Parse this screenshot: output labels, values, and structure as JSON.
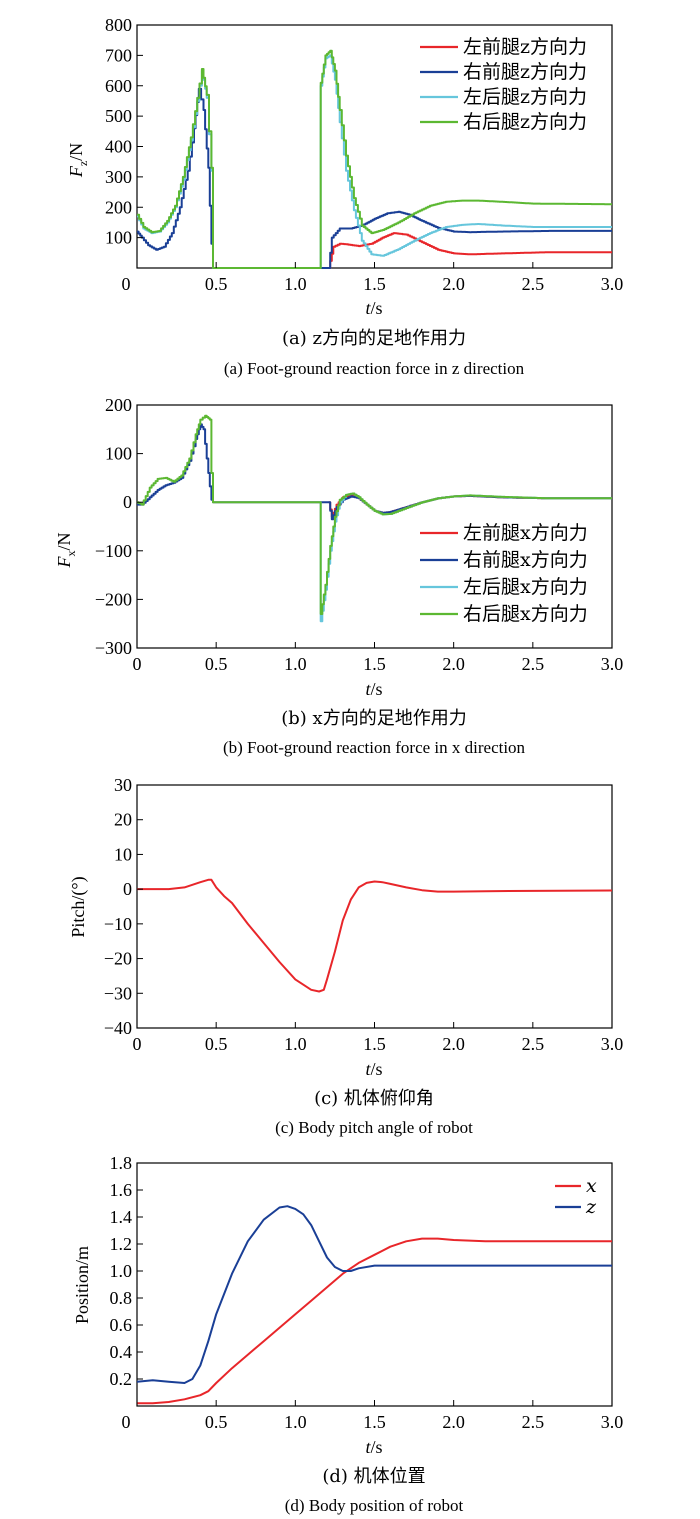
{
  "chart_data": [
    {
      "type": "line",
      "ylabel": "F_z/N",
      "xlabel": "t/s",
      "xlim": [
        0,
        3.0
      ],
      "ylim": [
        0,
        800
      ],
      "xticks": [
        "0",
        "0.5",
        "1.0",
        "1.5",
        "2.0",
        "2.5",
        "3.0"
      ],
      "yticks": [
        "100",
        "200",
        "300",
        "400",
        "500",
        "600",
        "700",
        "800"
      ],
      "legend_position": "top-right",
      "caption_cn": "(a) z方向的足地作用力",
      "caption_en": "(a) Foot-ground reaction force in z direction",
      "series": [
        {
          "name": "左前腿z方向力",
          "color": "#e8262a",
          "x": [
            1.21,
            1.24,
            1.28,
            1.32,
            1.36,
            1.4,
            1.48,
            1.55,
            1.62,
            1.7,
            1.8,
            1.9,
            2.0,
            2.1,
            2.3,
            2.6,
            3.0
          ],
          "y": [
            0,
            70,
            80,
            78,
            75,
            72,
            80,
            100,
            115,
            110,
            85,
            60,
            48,
            45,
            48,
            52,
            52
          ]
        },
        {
          "name": "右前腿z方向力",
          "color": "#1a3f96",
          "x": [
            0,
            0.03,
            0.07,
            0.12,
            0.17,
            0.22,
            0.27,
            0.32,
            0.36,
            0.39,
            0.42,
            0.45,
            0.47,
            0.48,
            1.21,
            1.23,
            1.28,
            1.35,
            1.42,
            1.5,
            1.58,
            1.65,
            1.72,
            1.8,
            1.9,
            2.0,
            2.1,
            2.3,
            2.6,
            3.0
          ],
          "y": [
            120,
            100,
            75,
            60,
            70,
            115,
            200,
            320,
            460,
            590,
            520,
            330,
            80,
            0,
            0,
            100,
            130,
            130,
            140,
            162,
            180,
            185,
            175,
            155,
            132,
            120,
            118,
            120,
            122,
            122
          ]
        },
        {
          "name": "左后腿z方向力",
          "color": "#66c6dc",
          "x": [
            0,
            0.04,
            0.09,
            0.14,
            0.19,
            0.24,
            0.29,
            0.34,
            0.38,
            0.41,
            0.44,
            0.47,
            0.48,
            1.15,
            1.16,
            1.19,
            1.22,
            1.25,
            1.28,
            1.32,
            1.37,
            1.42,
            1.48,
            1.55,
            1.65,
            1.75,
            1.85,
            1.95,
            2.05,
            2.15,
            2.3,
            2.5,
            3.0
          ],
          "y": [
            170,
            130,
            115,
            120,
            150,
            200,
            290,
            420,
            550,
            650,
            560,
            320,
            0,
            0,
            600,
            690,
            700,
            620,
            480,
            320,
            190,
            90,
            45,
            40,
            62,
            90,
            115,
            135,
            142,
            145,
            140,
            135,
            135
          ]
        },
        {
          "name": "右后腿z方向力",
          "color": "#5cb832",
          "x": [
            0,
            0.04,
            0.09,
            0.14,
            0.19,
            0.24,
            0.29,
            0.34,
            0.38,
            0.41,
            0.44,
            0.47,
            0.48,
            1.15,
            1.16,
            1.19,
            1.22,
            1.25,
            1.28,
            1.32,
            1.37,
            1.42,
            1.48,
            1.55,
            1.65,
            1.75,
            1.85,
            1.95,
            2.05,
            2.15,
            2.3,
            2.5,
            3.0
          ],
          "y": [
            175,
            135,
            118,
            122,
            155,
            205,
            300,
            430,
            560,
            655,
            570,
            330,
            0,
            0,
            610,
            700,
            715,
            650,
            520,
            370,
            230,
            140,
            115,
            125,
            150,
            180,
            205,
            218,
            222,
            222,
            218,
            212,
            210
          ]
        }
      ]
    },
    {
      "type": "line",
      "ylabel": "F_x/N",
      "xlabel": "t/s",
      "xlim": [
        0,
        3.0
      ],
      "ylim": [
        -300,
        200
      ],
      "xticks": [
        "0",
        "0.5",
        "1.0",
        "1.5",
        "2.0",
        "2.5",
        "3.0"
      ],
      "yticks": [
        "−300",
        "−200",
        "−100",
        "0",
        "100",
        "200"
      ],
      "legend_position": "lower-right",
      "caption_cn": "(b) x方向的足地作用力",
      "caption_en": "(b) Foot-ground reaction force in x direction",
      "series": [
        {
          "name": "左前腿x方向力",
          "color": "#e8262a",
          "x": [
            1.21,
            1.23,
            1.26,
            1.3,
            1.35,
            1.4,
            1.45,
            1.5,
            1.55,
            1.6,
            1.7,
            1.8,
            1.9,
            2.0,
            2.1,
            2.3,
            2.6,
            3.0
          ],
          "y": [
            0,
            -30,
            -5,
            10,
            15,
            8,
            -5,
            -18,
            -22,
            -20,
            -10,
            0,
            8,
            12,
            13,
            10,
            8,
            8
          ]
        },
        {
          "name": "右前腿x方向力",
          "color": "#1a3f96",
          "x": [
            0,
            0.03,
            0.08,
            0.13,
            0.18,
            0.23,
            0.28,
            0.33,
            0.37,
            0.4,
            0.42,
            0.45,
            0.47,
            0.48,
            1.21,
            1.23,
            1.26,
            1.3,
            1.35,
            1.4,
            1.45,
            1.5,
            1.55,
            1.6,
            1.7,
            1.8,
            1.9,
            2.0,
            2.1,
            2.3,
            2.6,
            3.0
          ],
          "y": [
            -5,
            -5,
            10,
            25,
            35,
            40,
            50,
            85,
            130,
            160,
            150,
            60,
            5,
            0,
            0,
            -35,
            -10,
            5,
            12,
            8,
            -5,
            -18,
            -22,
            -20,
            -10,
            0,
            8,
            12,
            13,
            10,
            8,
            8
          ]
        },
        {
          "name": "左后腿x方向力",
          "color": "#66c6dc",
          "x": [
            1.15,
            1.16,
            1.19,
            1.22,
            1.25,
            1.28,
            1.32,
            1.36,
            1.4,
            1.45,
            1.5,
            1.55,
            1.6,
            1.7,
            1.8,
            1.9,
            2.0,
            2.1,
            2.3,
            2.6,
            3.0
          ],
          "y": [
            0,
            -245,
            -180,
            -100,
            -40,
            0,
            15,
            18,
            10,
            -5,
            -18,
            -25,
            -24,
            -12,
            0,
            8,
            12,
            14,
            11,
            8,
            8
          ]
        },
        {
          "name": "右后腿x方向力",
          "color": "#5cb832",
          "x": [
            0,
            0.03,
            0.08,
            0.13,
            0.18,
            0.23,
            0.28,
            0.33,
            0.37,
            0.4,
            0.43,
            0.46,
            0.47,
            0.48,
            1.15,
            1.16,
            1.19,
            1.22,
            1.25,
            1.28,
            1.32,
            1.36,
            1.4,
            1.45,
            1.5,
            1.55,
            1.6,
            1.7,
            1.8,
            1.9,
            2.0,
            2.1,
            2.3,
            2.6,
            3.0
          ],
          "y": [
            0,
            -5,
            30,
            48,
            50,
            42,
            55,
            90,
            140,
            170,
            178,
            170,
            60,
            0,
            0,
            -230,
            -170,
            -90,
            -30,
            5,
            15,
            18,
            10,
            -5,
            -18,
            -25,
            -24,
            -12,
            0,
            8,
            12,
            14,
            11,
            8,
            8
          ]
        }
      ]
    },
    {
      "type": "line",
      "ylabel": "Pitch/(°)",
      "xlabel": "t/s",
      "xlim": [
        0,
        3.0
      ],
      "ylim": [
        -40,
        30
      ],
      "xticks": [
        "0",
        "0.5",
        "1.0",
        "1.5",
        "2.0",
        "2.5",
        "3.0"
      ],
      "yticks": [
        "−40",
        "−30",
        "−20",
        "−10",
        "0",
        "10",
        "20",
        "30"
      ],
      "caption_cn": "(c) 机体俯仰角",
      "caption_en": "(c) Body pitch angle of robot",
      "series": [
        {
          "color": "#e8262a",
          "x": [
            0,
            0.1,
            0.2,
            0.3,
            0.4,
            0.45,
            0.47,
            0.5,
            0.55,
            0.6,
            0.7,
            0.8,
            0.9,
            1.0,
            1.1,
            1.15,
            1.18,
            1.2,
            1.25,
            1.3,
            1.35,
            1.4,
            1.45,
            1.5,
            1.55,
            1.6,
            1.7,
            1.8,
            1.9,
            2.0,
            2.2,
            2.5,
            3.0
          ],
          "y": [
            0,
            0,
            0,
            0.5,
            2,
            2.7,
            2.7,
            0.5,
            -2,
            -4,
            -10,
            -15.5,
            -21,
            -26,
            -29,
            -29.5,
            -29,
            -26,
            -18,
            -9,
            -3,
            0.5,
            1.8,
            2.2,
            2,
            1.5,
            0.5,
            -0.3,
            -0.7,
            -0.7,
            -0.6,
            -0.5,
            -0.4
          ]
        }
      ]
    },
    {
      "type": "line",
      "ylabel": "Position/m",
      "xlabel": "t/s",
      "xlim": [
        0,
        3.0
      ],
      "ylim": [
        0,
        1.8
      ],
      "xticks": [
        "0",
        "0.5",
        "1.0",
        "1.5",
        "2.0",
        "2.5",
        "3.0"
      ],
      "yticks": [
        "0.2",
        "0.4",
        "0.6",
        "0.8",
        "1.0",
        "1.2",
        "1.4",
        "1.6",
        "1.8"
      ],
      "legend_position": "top-right",
      "caption_cn": "(d) 机体位置",
      "caption_en": "(d) Body position of robot",
      "series": [
        {
          "name": "x",
          "color": "#e8262a",
          "x": [
            0,
            0.1,
            0.2,
            0.3,
            0.4,
            0.45,
            0.5,
            0.6,
            0.7,
            0.8,
            0.9,
            1.0,
            1.1,
            1.2,
            1.3,
            1.4,
            1.5,
            1.6,
            1.7,
            1.8,
            1.9,
            2.0,
            2.2,
            2.5,
            3.0
          ],
          "y": [
            0.02,
            0.02,
            0.03,
            0.05,
            0.08,
            0.11,
            0.17,
            0.28,
            0.38,
            0.48,
            0.58,
            0.68,
            0.78,
            0.88,
            0.98,
            1.06,
            1.12,
            1.18,
            1.22,
            1.24,
            1.24,
            1.23,
            1.22,
            1.22,
            1.22
          ]
        },
        {
          "name": "z",
          "color": "#1a3f96",
          "x": [
            0,
            0.1,
            0.2,
            0.3,
            0.35,
            0.4,
            0.45,
            0.5,
            0.6,
            0.7,
            0.8,
            0.9,
            0.95,
            1.0,
            1.05,
            1.1,
            1.15,
            1.2,
            1.25,
            1.3,
            1.35,
            1.4,
            1.5,
            1.6,
            1.8,
            2.0,
            2.5,
            3.0
          ],
          "y": [
            0.18,
            0.19,
            0.18,
            0.17,
            0.2,
            0.3,
            0.48,
            0.68,
            0.98,
            1.22,
            1.38,
            1.47,
            1.48,
            1.46,
            1.42,
            1.34,
            1.22,
            1.1,
            1.03,
            1.0,
            1.0,
            1.02,
            1.04,
            1.04,
            1.04,
            1.04,
            1.04,
            1.04
          ]
        }
      ]
    }
  ]
}
